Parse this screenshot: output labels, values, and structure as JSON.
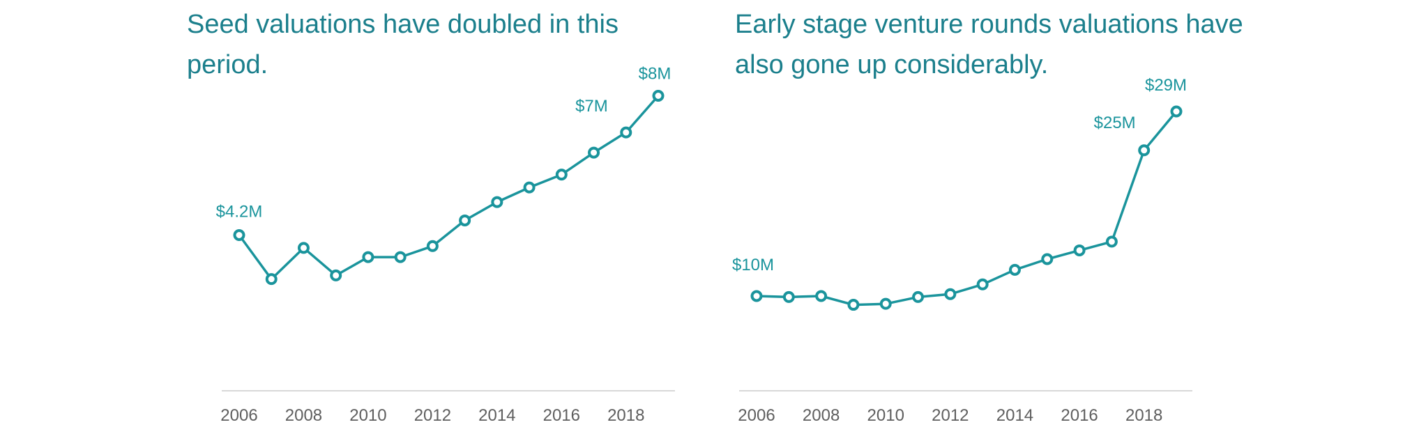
{
  "chart_data": [
    {
      "type": "line",
      "title": "Seed valuations have doubled in this period.",
      "x": [
        2006,
        2007,
        2008,
        2009,
        2010,
        2011,
        2012,
        2013,
        2014,
        2015,
        2016,
        2017,
        2018,
        2019
      ],
      "series": [
        {
          "values": [
            4.2,
            3.0,
            3.85,
            3.1,
            3.6,
            3.6,
            3.9,
            4.6,
            5.1,
            5.5,
            5.85,
            6.45,
            7.0,
            8.0
          ]
        }
      ],
      "xticks": [
        2006,
        2008,
        2010,
        2012,
        2014,
        2016,
        2018
      ],
      "xtick_labels": [
        "2006",
        "2008",
        "2010",
        "2012",
        "2014",
        "2016",
        "2018"
      ],
      "ylim": [
        0,
        9
      ],
      "data_labels": [
        {
          "x": 2006,
          "y": 4.2,
          "text": "$4.2M"
        },
        {
          "x": 2018,
          "y": 7.0,
          "text": "$7M"
        },
        {
          "x": 2019,
          "y": 8.0,
          "text": "$8M"
        }
      ],
      "grid": false,
      "color": "#1a949c",
      "title_color": "#1b7f8c"
    },
    {
      "type": "line",
      "title": "Early stage venture rounds valuations have also gone up considerably.",
      "x": [
        2006,
        2007,
        2008,
        2009,
        2010,
        2011,
        2012,
        2013,
        2014,
        2015,
        2016,
        2017,
        2018,
        2019
      ],
      "series": [
        {
          "values": [
            10.0,
            9.9,
            10.0,
            9.1,
            9.2,
            9.9,
            10.2,
            11.2,
            12.7,
            13.8,
            14.7,
            15.6,
            25.0,
            29.0
          ]
        }
      ],
      "xticks": [
        2006,
        2008,
        2010,
        2012,
        2014,
        2016,
        2018
      ],
      "xtick_labels": [
        "2006",
        "2008",
        "2010",
        "2012",
        "2014",
        "2016",
        "2018"
      ],
      "ylim": [
        0,
        33
      ],
      "data_labels": [
        {
          "x": 2006,
          "y": 10.0,
          "text": "$10M"
        },
        {
          "x": 2018,
          "y": 25.0,
          "text": "$25M"
        },
        {
          "x": 2019,
          "y": 29.0,
          "text": "$29M"
        }
      ],
      "grid": false,
      "color": "#1a949c",
      "title_color": "#1b7f8c"
    }
  ]
}
